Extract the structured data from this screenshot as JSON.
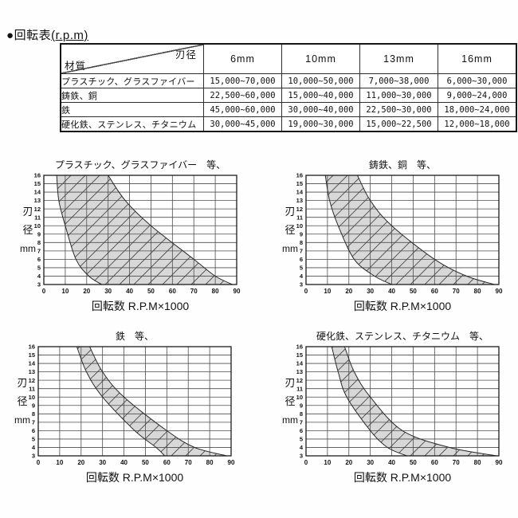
{
  "header": {
    "bullet": "●",
    "title": "回転表",
    "suffix": "(r.p.m)"
  },
  "table": {
    "corner": {
      "top_right": "刃径",
      "bottom_left": "材質"
    },
    "columns": [
      "6mm",
      "10mm",
      "13mm",
      "16mm"
    ],
    "rows": [
      {
        "material": "プラスチック、グラスファイバー",
        "values": [
          "15,000~70,000",
          "10,000~50,000",
          "7,000~38,000",
          "6,000~30,000"
        ]
      },
      {
        "material": "鋳鉄、銅",
        "values": [
          "22,500~60,000",
          "15,000~40,000",
          "11,000~30,000",
          "9,000~24,000"
        ]
      },
      {
        "material": "鉄",
        "values": [
          "45,000~60,000",
          "30,000~40,000",
          "22,500~30,000",
          "18,000~24,000"
        ]
      },
      {
        "material": "硬化鉄、ステンレス、チタニウム",
        "values": [
          "30,000~45,000",
          "19,000~30,000",
          "15,000~22,500",
          "12,000~18,000"
        ]
      }
    ]
  },
  "colors": {
    "band_fill": "#d8d8d8",
    "hatch": "#4a4a4a",
    "grid": "#4d4d4d",
    "plot_border": "#1c1c1c",
    "band_edge": "#2a2a2a",
    "text": "#111111"
  },
  "chart_data": [
    {
      "id": "plastic-glassfiber",
      "type": "area",
      "title": "プラスチック、グラスファイバー　等、",
      "xlabel": "回転数 R.P.M×1000",
      "ylabel": "刃径 mm",
      "ylabel_chars": [
        "刃",
        "径",
        "mm"
      ],
      "xlim": [
        0,
        90
      ],
      "ylim": [
        3,
        16
      ],
      "x_ticks": [
        0,
        10,
        20,
        30,
        40,
        50,
        60,
        70,
        80,
        90
      ],
      "y_ticks": [
        3,
        4,
        5,
        6,
        7,
        8,
        9,
        10,
        11,
        12,
        13,
        14,
        15,
        16
      ],
      "band": {
        "left_boundary": [
          [
            6,
            16
          ],
          [
            7,
            13
          ],
          [
            10,
            10
          ],
          [
            15,
            6
          ],
          [
            21,
            4
          ],
          [
            27,
            3
          ]
        ],
        "right_boundary": [
          [
            30,
            16
          ],
          [
            38,
            13
          ],
          [
            50,
            10
          ],
          [
            70,
            6
          ],
          [
            80,
            4
          ],
          [
            88,
            3
          ]
        ]
      }
    },
    {
      "id": "castiron-copper",
      "type": "area",
      "title": "鋳鉄、銅　等、",
      "xlabel": "回転数 R.P.M×1000",
      "ylabel": "刃径 mm",
      "ylabel_chars": [
        "刃",
        "径",
        "mm"
      ],
      "xlim": [
        0,
        90
      ],
      "ylim": [
        3,
        16
      ],
      "x_ticks": [
        0,
        10,
        20,
        30,
        40,
        50,
        60,
        70,
        80,
        90
      ],
      "y_ticks": [
        3,
        4,
        5,
        6,
        7,
        8,
        9,
        10,
        11,
        12,
        13,
        14,
        15,
        16
      ],
      "band": {
        "left_boundary": [
          [
            9,
            16
          ],
          [
            11,
            13
          ],
          [
            15,
            10
          ],
          [
            22.5,
            6
          ],
          [
            32,
            4
          ],
          [
            40,
            3
          ]
        ],
        "right_boundary": [
          [
            24,
            16
          ],
          [
            30,
            13
          ],
          [
            40,
            10
          ],
          [
            60,
            6
          ],
          [
            75,
            4
          ],
          [
            88,
            3
          ]
        ]
      }
    },
    {
      "id": "iron",
      "type": "area",
      "title": "鉄　等、",
      "xlabel": "回転数 R.P.M×1000",
      "ylabel": "刃径 mm",
      "ylabel_chars": [
        "刃",
        "径",
        "mm"
      ],
      "xlim": [
        0,
        90
      ],
      "ylim": [
        3,
        16
      ],
      "x_ticks": [
        0,
        10,
        20,
        30,
        40,
        50,
        60,
        70,
        80,
        90
      ],
      "y_ticks": [
        3,
        4,
        5,
        6,
        7,
        8,
        9,
        10,
        11,
        12,
        13,
        14,
        15,
        16
      ],
      "band": {
        "left_boundary": [
          [
            18,
            16
          ],
          [
            22.5,
            13
          ],
          [
            30,
            10
          ],
          [
            45,
            6
          ],
          [
            55,
            4
          ],
          [
            59,
            3
          ]
        ],
        "right_boundary": [
          [
            24,
            16
          ],
          [
            30,
            13
          ],
          [
            40,
            10
          ],
          [
            60,
            6
          ],
          [
            73,
            4
          ],
          [
            88,
            3
          ]
        ]
      }
    },
    {
      "id": "hardened-stainless-titanium",
      "type": "area",
      "title": "硬化鉄、ステンレス、チタニウム　等、",
      "xlabel": "回転数 R.P.M×1000",
      "ylabel": "刃径 mm",
      "ylabel_chars": [
        "刃",
        "径",
        "mm"
      ],
      "xlim": [
        0,
        90
      ],
      "ylim": [
        3,
        16
      ],
      "x_ticks": [
        0,
        10,
        20,
        30,
        40,
        50,
        60,
        70,
        80,
        90
      ],
      "y_ticks": [
        3,
        4,
        5,
        6,
        7,
        8,
        9,
        10,
        11,
        12,
        13,
        14,
        15,
        16
      ],
      "band": {
        "left_boundary": [
          [
            12,
            16
          ],
          [
            15,
            13
          ],
          [
            19,
            10
          ],
          [
            30,
            6
          ],
          [
            38,
            4
          ],
          [
            47,
            3
          ]
        ],
        "right_boundary": [
          [
            18,
            16
          ],
          [
            22.5,
            13
          ],
          [
            30,
            10
          ],
          [
            45,
            6
          ],
          [
            67,
            4
          ],
          [
            89,
            3
          ]
        ]
      }
    }
  ]
}
